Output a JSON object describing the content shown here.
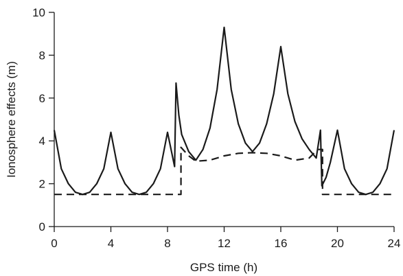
{
  "chart_data": {
    "type": "line",
    "title": "",
    "xlabel": "GPS time (h)",
    "ylabel": "Ionosphere effects (m)",
    "xlim": [
      0,
      24
    ],
    "ylim": [
      0,
      10
    ],
    "xticks": [
      0,
      4,
      8,
      12,
      16,
      20,
      24
    ],
    "yticks": [
      0,
      2,
      4,
      6,
      8,
      10
    ],
    "xtick_labels": [
      "0",
      "4",
      "8",
      "12",
      "16",
      "20",
      "24"
    ],
    "ytick_labels": [
      "0",
      "2",
      "4",
      "6",
      "8",
      "10"
    ],
    "grid": false,
    "legend": "none",
    "series": [
      {
        "style": "solid",
        "color": "#1a1a1a",
        "x": [
          0,
          0.5,
          1,
          1.5,
          2,
          2.5,
          3,
          3.5,
          4,
          4.5,
          5,
          5.5,
          6,
          6.5,
          7,
          7.5,
          8,
          8.5,
          8.6,
          8.8,
          9,
          9.5,
          10,
          10.5,
          11,
          11.5,
          12,
          12.5,
          13,
          13.5,
          14,
          14.5,
          15,
          15.5,
          16,
          16.5,
          17,
          17.5,
          18,
          18.5,
          18.8,
          18.9,
          19.2,
          19.5,
          20,
          20.5,
          21,
          21.5,
          22,
          22.5,
          23,
          23.5,
          24
        ],
        "y": [
          4.5,
          2.7,
          2.0,
          1.6,
          1.5,
          1.6,
          2.0,
          2.7,
          4.4,
          2.7,
          2.0,
          1.6,
          1.5,
          1.6,
          2.0,
          2.7,
          4.4,
          2.8,
          6.7,
          5.2,
          4.3,
          3.5,
          3.1,
          3.6,
          4.6,
          6.4,
          9.3,
          6.4,
          4.8,
          3.9,
          3.5,
          3.9,
          4.8,
          6.2,
          8.4,
          6.2,
          4.9,
          4.1,
          3.6,
          3.2,
          4.5,
          1.9,
          2.3,
          3.0,
          4.5,
          2.7,
          2.0,
          1.6,
          1.5,
          1.6,
          2.0,
          2.7,
          4.5
        ]
      },
      {
        "style": "dashed",
        "color": "#1a1a1a",
        "x": [
          0,
          8.95,
          8.95,
          9.5,
          10,
          11,
          12,
          13,
          14,
          15,
          16,
          17,
          18,
          18.6,
          18.95,
          18.95,
          24
        ],
        "y": [
          1.5,
          1.5,
          3.7,
          3.3,
          3.05,
          3.1,
          3.3,
          3.42,
          3.45,
          3.42,
          3.3,
          3.1,
          3.2,
          3.6,
          3.6,
          1.5,
          1.5
        ]
      }
    ]
  }
}
